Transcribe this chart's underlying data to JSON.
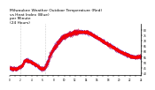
{
  "title": "Milwaukee Weather Outdoor Temperature (Red)",
  "title2": "vs Heat Index (Blue)",
  "title3": "per Minute",
  "title4": "(24 Hours)",
  "title_fontsize": 3.2,
  "bg_color": "#ffffff",
  "line_color_red": "#ff0000",
  "line_color_blue": "#0000ff",
  "ylabel_right_values": [
    80,
    75,
    70,
    65,
    60,
    55,
    50,
    45,
    40
  ],
  "ylim": [
    38,
    85
  ],
  "xlim": [
    0,
    1440
  ],
  "vline_x1": 120,
  "vline_x2": 390,
  "x_tick_positions": [
    0,
    60,
    120,
    180,
    240,
    300,
    360,
    420,
    480,
    540,
    600,
    660,
    720,
    780,
    840,
    900,
    960,
    1020,
    1080,
    1140,
    1200,
    1260,
    1320,
    1380,
    1440
  ]
}
